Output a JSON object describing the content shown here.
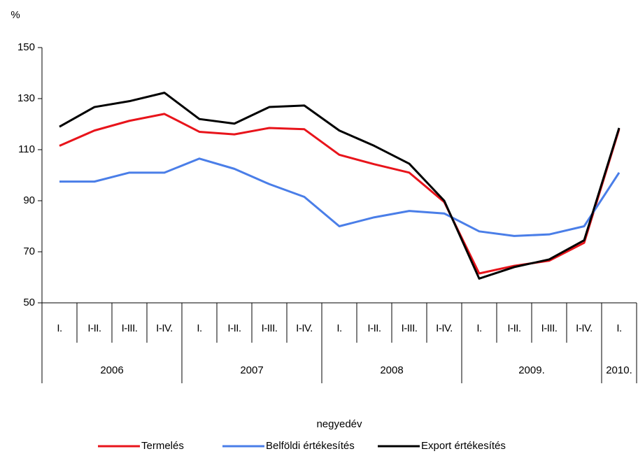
{
  "chart_data": {
    "type": "line",
    "y_label": "%",
    "x_label": "negyedév",
    "groups": [
      {
        "label": "2006",
        "categories": [
          "I.",
          "I-II.",
          "I-III.",
          "I-IV."
        ]
      },
      {
        "label": "2007",
        "categories": [
          "I.",
          "I-II.",
          "I-III.",
          "I-IV."
        ]
      },
      {
        "label": "2008",
        "categories": [
          "I.",
          "I-II.",
          "I-III.",
          "I-IV."
        ]
      },
      {
        "label": "2009.",
        "categories": [
          "I.",
          "I-II.",
          "I-III.",
          "I-IV."
        ]
      },
      {
        "label": "2010.",
        "categories": [
          "I."
        ]
      }
    ],
    "series": [
      {
        "name": "Termelés",
        "color": "#e8141b",
        "values": [
          111.5,
          117.5,
          121.3,
          124,
          117,
          116,
          118.5,
          118,
          108,
          104.3,
          101,
          89.5,
          61.5,
          64.5,
          66.5,
          73.5,
          118
        ]
      },
      {
        "name": "Belföldi értékesítés",
        "color": "#4a7ee8",
        "values": [
          97.5,
          97.5,
          101,
          101,
          106.5,
          102.5,
          96.5,
          91.5,
          80,
          83.5,
          86,
          85,
          78,
          76.2,
          76.8,
          80,
          101
        ]
      },
      {
        "name": "Export értékesítés",
        "color": "#000000",
        "values": [
          119,
          126.7,
          129,
          132.3,
          122,
          120.2,
          126.7,
          127.3,
          117.5,
          111.5,
          104.5,
          90,
          59.5,
          64,
          67,
          74.5,
          118.5
        ]
      }
    ],
    "ylim": [
      50,
      150
    ],
    "yticks": [
      50,
      70,
      90,
      110,
      130,
      150
    ],
    "grid": false,
    "legend": "bottom"
  }
}
